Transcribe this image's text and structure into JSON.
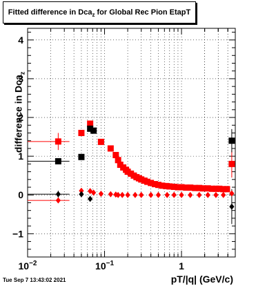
{
  "title": {
    "main": "Fitted difference in Dca",
    "sub": "z",
    "rest": " for Global Rec Pion EtapT"
  },
  "ylabel": {
    "main": "difference in Dca",
    "sub": "z"
  },
  "xlabel": "pT/|q| (GeV/c)",
  "timestamp": "Tue Sep  7 13:43:02 2021",
  "chart_data": {
    "type": "scatter",
    "title": "Fitted difference in Dcaz  for Global Rec Pion EtapT",
    "xlabel": "pT/|q| (GeV/c)",
    "ylabel": "difference in Dcaz",
    "xscale": "log",
    "xlim": [
      0.01,
      5
    ],
    "ylim": [
      -1.6,
      4.3
    ],
    "grid": true,
    "x_tick_labels": [
      {
        "v": 0.01,
        "mant": "10",
        "exp": "−2"
      },
      {
        "v": 0.1,
        "mant": "10",
        "exp": "−1"
      },
      {
        "v": 1,
        "mant": "1",
        "exp": ""
      }
    ],
    "y_ticks": [
      -1,
      0,
      1,
      2,
      3,
      4
    ],
    "series": [
      {
        "color": "#ff0000",
        "marker": "square",
        "points": [
          {
            "x": 0.025,
            "y": 1.38,
            "xerr": [
              0.01,
              0.035
            ],
            "yerr": 0.22
          },
          {
            "x": 0.05,
            "y": 1.6
          },
          {
            "x": 0.065,
            "y": 1.84
          },
          {
            "x": 0.09,
            "y": 1.37
          },
          {
            "x": 0.12,
            "y": 1.2
          },
          {
            "x": 0.14,
            "y": 1.03
          },
          {
            "x": 0.15,
            "y": 0.9
          },
          {
            "x": 0.16,
            "y": 0.78
          },
          {
            "x": 0.175,
            "y": 0.71
          },
          {
            "x": 0.19,
            "y": 0.65
          },
          {
            "x": 0.2,
            "y": 0.6
          },
          {
            "x": 0.22,
            "y": 0.55
          },
          {
            "x": 0.24,
            "y": 0.5
          },
          {
            "x": 0.26,
            "y": 0.46
          },
          {
            "x": 0.28,
            "y": 0.43
          },
          {
            "x": 0.3,
            "y": 0.4
          },
          {
            "x": 0.33,
            "y": 0.37
          },
          {
            "x": 0.36,
            "y": 0.34
          },
          {
            "x": 0.4,
            "y": 0.31
          },
          {
            "x": 0.45,
            "y": 0.28
          },
          {
            "x": 0.5,
            "y": 0.26
          },
          {
            "x": 0.56,
            "y": 0.24
          },
          {
            "x": 0.63,
            "y": 0.23
          },
          {
            "x": 0.7,
            "y": 0.22
          },
          {
            "x": 0.8,
            "y": 0.21
          },
          {
            "x": 0.9,
            "y": 0.2
          },
          {
            "x": 1.0,
            "y": 0.2
          },
          {
            "x": 1.15,
            "y": 0.19
          },
          {
            "x": 1.3,
            "y": 0.19
          },
          {
            "x": 1.5,
            "y": 0.18
          },
          {
            "x": 1.7,
            "y": 0.18
          },
          {
            "x": 1.9,
            "y": 0.17
          },
          {
            "x": 2.2,
            "y": 0.17
          },
          {
            "x": 2.5,
            "y": 0.16
          },
          {
            "x": 2.8,
            "y": 0.16
          },
          {
            "x": 3.1,
            "y": 0.16
          },
          {
            "x": 3.5,
            "y": 0.15
          },
          {
            "x": 3.9,
            "y": 0.15
          },
          {
            "x": 4.5,
            "y": 0.8,
            "yerr": 0.35
          }
        ]
      },
      {
        "color": "#000000",
        "marker": "square",
        "points": [
          {
            "x": 0.025,
            "y": 0.87,
            "xerr": [
              0.01,
              0.035
            ]
          },
          {
            "x": 0.05,
            "y": 0.98
          },
          {
            "x": 0.065,
            "y": 1.71
          },
          {
            "x": 0.072,
            "y": 1.66
          },
          {
            "x": 4.5,
            "y": 1.4,
            "yerr": 0.3
          }
        ]
      },
      {
        "color": "#ff0000",
        "marker": "diamond",
        "points": [
          {
            "x": 0.025,
            "y": -0.14,
            "xerr": [
              0.01,
              0.035
            ]
          },
          {
            "x": 0.05,
            "y": 0.11
          },
          {
            "x": 0.065,
            "y": 0.1
          },
          {
            "x": 0.072,
            "y": 0.06
          },
          {
            "x": 0.09,
            "y": 0.03
          },
          {
            "x": 0.12,
            "y": 0.02
          },
          {
            "x": 0.14,
            "y": 0.01
          },
          {
            "x": 0.15,
            "y": 0.0
          },
          {
            "x": 0.17,
            "y": 0.0
          },
          {
            "x": 0.2,
            "y": 0.0
          },
          {
            "x": 0.25,
            "y": 0.0
          },
          {
            "x": 0.3,
            "y": 0.0
          },
          {
            "x": 0.4,
            "y": 0.0
          },
          {
            "x": 0.5,
            "y": 0.0
          },
          {
            "x": 0.65,
            "y": 0.0
          },
          {
            "x": 0.8,
            "y": 0.0
          },
          {
            "x": 1.0,
            "y": 0.0
          },
          {
            "x": 1.3,
            "y": 0.0
          },
          {
            "x": 1.7,
            "y": 0.0
          },
          {
            "x": 2.2,
            "y": 0.0
          },
          {
            "x": 2.8,
            "y": 0.0
          },
          {
            "x": 3.5,
            "y": 0.0
          },
          {
            "x": 4.5,
            "y": 0.04
          }
        ]
      },
      {
        "color": "#000000",
        "marker": "diamond",
        "points": [
          {
            "x": 0.025,
            "y": 0.02,
            "xerr": [
              0.01,
              0.035
            ],
            "yerr": 0.09
          },
          {
            "x": 0.05,
            "y": 0.02
          },
          {
            "x": 0.065,
            "y": -0.1
          },
          {
            "x": 4.5,
            "y": -0.3,
            "yerr": 0.45
          }
        ]
      }
    ]
  }
}
